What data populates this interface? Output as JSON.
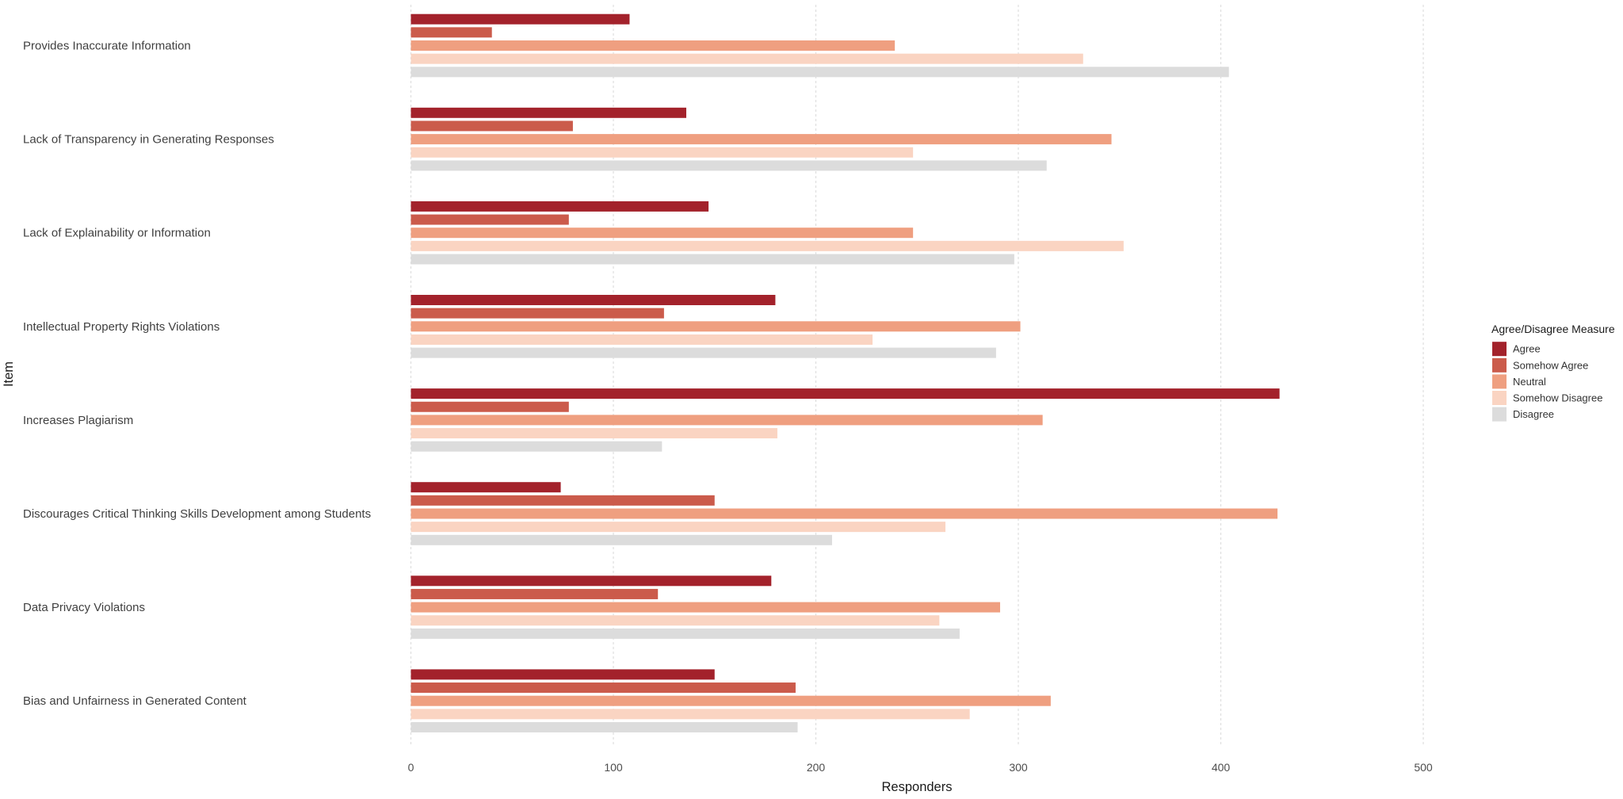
{
  "chart_data": {
    "type": "bar",
    "orientation": "horizontal",
    "xlabel": "Responders",
    "ylabel": "Item",
    "xlim": [
      0,
      500
    ],
    "xticks": [
      0,
      100,
      200,
      300,
      400,
      500
    ],
    "grid": true,
    "legend_title": "Agree/Disagree Measure",
    "legend_position": "right",
    "categories": [
      "Provides Inaccurate Information",
      "Lack of Transparency in Generating Responses",
      "Lack of Explainability or Information",
      "Intellectual Property Rights Violations",
      "Increases Plagiarism",
      "Discourages Critical Thinking Skills Development among Students",
      "Data Privacy Violations",
      "Bias and Unfairness in Generated Content"
    ],
    "series": [
      {
        "name": "Agree",
        "color": "#a3222b",
        "values": [
          108,
          136,
          147,
          180,
          429,
          74,
          178,
          150
        ]
      },
      {
        "name": "Somehow Agree",
        "color": "#cb5b4b",
        "values": [
          40,
          80,
          78,
          125,
          78,
          150,
          122,
          190
        ]
      },
      {
        "name": "Neutral",
        "color": "#ef9f80",
        "values": [
          239,
          346,
          248,
          301,
          312,
          428,
          291,
          316
        ]
      },
      {
        "name": "Somehow Disagree",
        "color": "#fad4c2",
        "values": [
          332,
          248,
          352,
          228,
          181,
          264,
          261,
          276
        ]
      },
      {
        "name": "Disagree",
        "color": "#dcdcdc",
        "values": [
          404,
          314,
          298,
          289,
          124,
          208,
          271,
          191
        ]
      }
    ]
  }
}
